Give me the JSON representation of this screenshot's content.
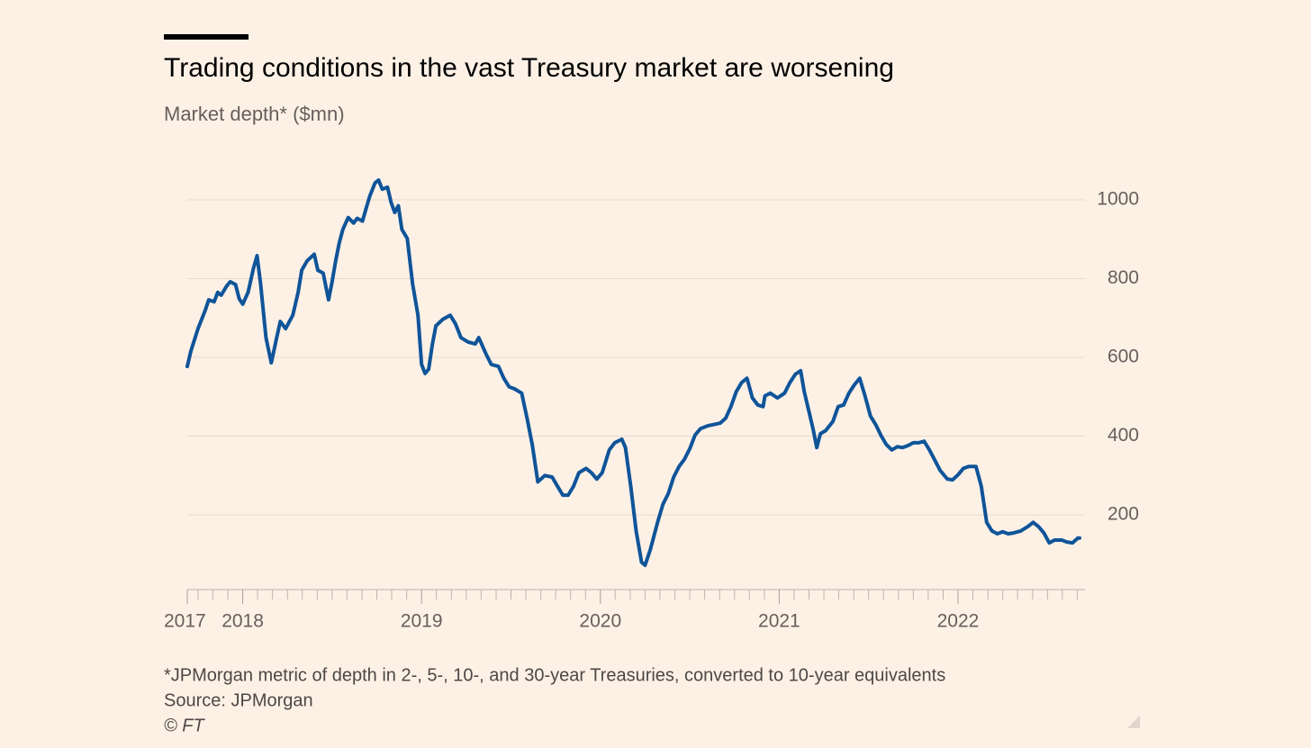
{
  "chart_data": {
    "type": "line",
    "title": "Trading conditions in the vast Treasury market are worsening",
    "subtitle": "Market depth* ($mn)",
    "footnote": "*JPMorgan metric of depth in 2-, 5-, 10-, and 30-year Treasuries, converted to 10-year equivalents",
    "source": "Source: JPMorgan",
    "copyright": "© FT",
    "color": "#0f5499",
    "x": [
      2017.69,
      2017.71,
      2017.75,
      2017.79,
      2017.81,
      2017.84,
      2017.86,
      2017.88,
      2017.91,
      2017.93,
      2017.96,
      2017.98,
      2018.0,
      2018.03,
      2018.06,
      2018.08,
      2018.1,
      2018.13,
      2018.16,
      2018.19,
      2018.21,
      2018.24,
      2018.28,
      2018.31,
      2018.33,
      2018.36,
      2018.4,
      2018.42,
      2018.45,
      2018.48,
      2018.5,
      2018.52,
      2018.54,
      2018.56,
      2018.59,
      2018.62,
      2018.64,
      2018.67,
      2018.69,
      2018.71,
      2018.74,
      2018.76,
      2018.78,
      2018.81,
      2018.83,
      2018.85,
      2018.87,
      2018.89,
      2018.92,
      2018.95,
      2018.98,
      2019.0,
      2019.02,
      2019.04,
      2019.06,
      2019.08,
      2019.12,
      2019.16,
      2019.19,
      2019.22,
      2019.26,
      2019.3,
      2019.32,
      2019.36,
      2019.39,
      2019.43,
      2019.46,
      2019.49,
      2019.52,
      2019.56,
      2019.59,
      2019.62,
      2019.65,
      2019.69,
      2019.73,
      2019.76,
      2019.79,
      2019.82,
      2019.85,
      2019.88,
      2019.92,
      2019.95,
      2019.98,
      2020.01,
      2020.05,
      2020.08,
      2020.12,
      2020.14,
      2020.17,
      2020.2,
      2020.23,
      2020.25,
      2020.28,
      2020.32,
      2020.35,
      2020.38,
      2020.41,
      2020.44,
      2020.47,
      2020.5,
      2020.53,
      2020.56,
      2020.6,
      2020.63,
      2020.67,
      2020.7,
      2020.73,
      2020.76,
      2020.79,
      2020.82,
      2020.85,
      2020.88,
      2020.91,
      2020.92,
      2020.95,
      2020.99,
      2021.03,
      2021.06,
      2021.09,
      2021.12,
      2021.14,
      2021.17,
      2021.19,
      2021.21,
      2021.23,
      2021.26,
      2021.3,
      2021.33,
      2021.36,
      2021.39,
      2021.42,
      2021.45,
      2021.48,
      2021.51,
      2021.54,
      2021.57,
      2021.6,
      2021.63,
      2021.66,
      2021.69,
      2021.72,
      2021.75,
      2021.78,
      2021.81,
      2021.84,
      2021.87,
      2021.9,
      2021.94,
      2021.97,
      2022.0,
      2022.03,
      2022.06,
      2022.1,
      2022.13,
      2022.16,
      2022.19,
      2022.22,
      2022.25,
      2022.28,
      2022.31,
      2022.35,
      2022.39,
      2022.42,
      2022.45,
      2022.48,
      2022.51,
      2022.54,
      2022.58,
      2022.61,
      2022.64,
      2022.67,
      2022.68
    ],
    "values": [
      577,
      616,
      673,
      719,
      746,
      741,
      765,
      758,
      781,
      792,
      785,
      749,
      735,
      765,
      826,
      858,
      787,
      650,
      586,
      650,
      691,
      673,
      707,
      765,
      821,
      845,
      862,
      821,
      814,
      746,
      793,
      845,
      891,
      925,
      955,
      941,
      953,
      946,
      978,
      1009,
      1043,
      1050,
      1027,
      1032,
      993,
      968,
      985,
      925,
      902,
      787,
      707,
      582,
      559,
      570,
      632,
      680,
      697,
      707,
      685,
      650,
      639,
      634,
      650,
      609,
      582,
      577,
      547,
      525,
      520,
      509,
      445,
      376,
      284,
      300,
      296,
      273,
      250,
      250,
      273,
      307,
      318,
      307,
      291,
      307,
      365,
      383,
      392,
      371,
      273,
      159,
      80,
      72,
      113,
      181,
      227,
      254,
      296,
      323,
      341,
      368,
      403,
      419,
      426,
      429,
      433,
      445,
      475,
      513,
      536,
      547,
      497,
      479,
      475,
      502,
      509,
      497,
      509,
      536,
      557,
      566,
      513,
      456,
      417,
      371,
      406,
      414,
      437,
      475,
      479,
      509,
      530,
      547,
      502,
      451,
      429,
      401,
      378,
      365,
      373,
      371,
      376,
      383,
      383,
      387,
      365,
      339,
      313,
      291,
      289,
      302,
      318,
      323,
      323,
      273,
      181,
      159,
      152,
      157,
      152,
      154,
      159,
      170,
      181,
      170,
      154,
      129,
      136,
      136,
      131,
      129,
      141,
      141
    ],
    "xlim": [
      2017.69,
      2022.71
    ],
    "xticks": [
      {
        "value": 2017.69,
        "label": "2017"
      },
      2018,
      2019,
      2020,
      2021,
      2022
    ],
    "xminorticks": [
      2017.75,
      2017.833,
      2017.917,
      2018.083,
      2018.167,
      2018.25,
      2018.333,
      2018.417,
      2018.5,
      2018.583,
      2018.667,
      2018.75,
      2018.833,
      2018.917,
      2019.083,
      2019.167,
      2019.25,
      2019.333,
      2019.417,
      2019.5,
      2019.583,
      2019.667,
      2019.75,
      2019.833,
      2019.917,
      2020.083,
      2020.167,
      2020.25,
      2020.333,
      2020.417,
      2020.5,
      2020.583,
      2020.667,
      2020.75,
      2020.833,
      2020.917,
      2021.083,
      2021.167,
      2021.25,
      2021.333,
      2021.417,
      2021.5,
      2021.583,
      2021.667,
      2021.75,
      2021.833,
      2021.917,
      2022.083,
      2022.167,
      2022.25,
      2022.333,
      2022.417,
      2022.5,
      2022.583,
      2022.667
    ],
    "ylim": [
      0,
      1100
    ],
    "yticks": [
      200,
      400,
      600,
      800,
      1000
    ],
    "grid": true
  }
}
